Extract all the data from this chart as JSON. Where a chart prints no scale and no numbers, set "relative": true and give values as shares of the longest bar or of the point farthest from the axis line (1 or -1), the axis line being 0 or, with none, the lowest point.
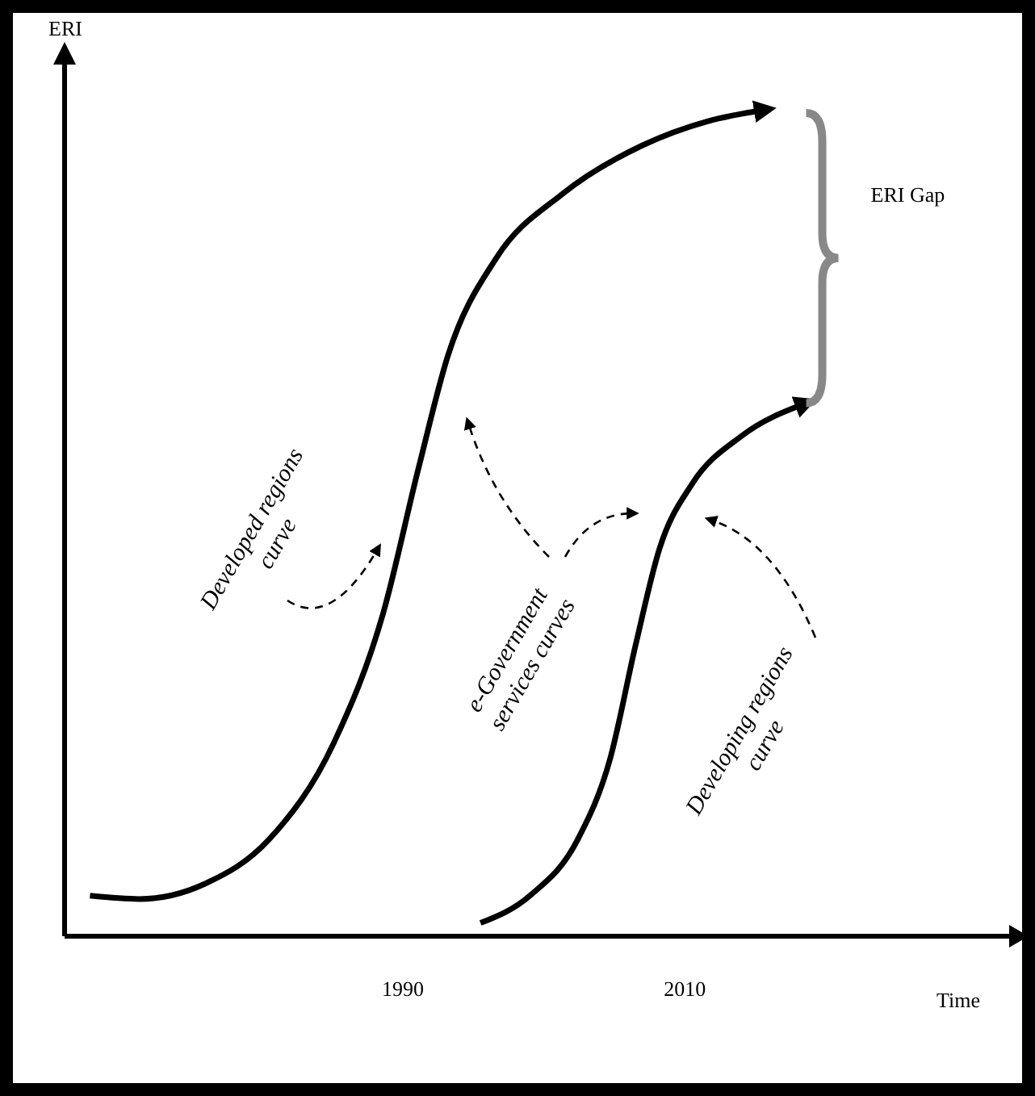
{
  "chart_data": {
    "type": "line",
    "relative": true,
    "xlabel": "Time",
    "ylabel": "ERI",
    "xlim": [
      1966,
      2033
    ],
    "xticks": [
      1990,
      2010
    ],
    "line_style": "solid",
    "marker": "none",
    "grid": false,
    "series": [
      {
        "name": "Developed regions curve",
        "color": "#000000",
        "x": [
          1967.8,
          1971.3,
          1975.9,
          1980.5,
          1985.1,
          1988.6,
          1991.1,
          1993.2,
          1996.6,
          2001.3,
          2007.0,
          2011.6,
          2015.7
        ],
        "values": [
          0.049,
          0.045,
          0.063,
          0.117,
          0.234,
          0.391,
          0.566,
          0.703,
          0.82,
          0.898,
          0.957,
          0.986,
          1.0
        ]
      },
      {
        "name": "Developing regions curve",
        "color": "#000000",
        "x": [
          1995.5,
          1999.0,
          2002.4,
          2004.7,
          2006.5,
          2008.2,
          2010.5,
          2014.0,
          2018.6
        ],
        "values": [
          0.016,
          0.049,
          0.117,
          0.215,
          0.352,
          0.469,
          0.547,
          0.605,
          0.645
        ]
      }
    ],
    "annotations": [
      "e-Government services curves",
      "ERI Gap"
    ]
  }
}
